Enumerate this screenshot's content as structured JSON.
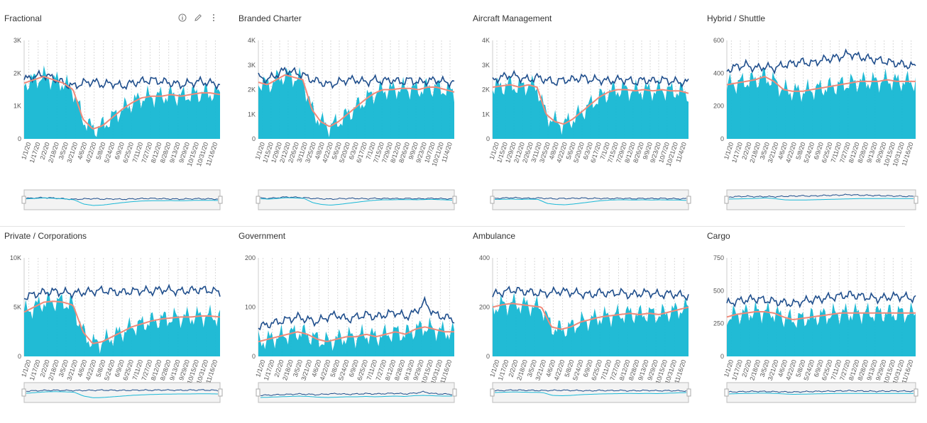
{
  "colors": {
    "dark_series": "#1f4e8c",
    "light_series": "#1ab8d6",
    "fill_area": "#15b7d3",
    "average_line": "#f08a7a",
    "gap_fill": "#5a78a8",
    "grid": "#d9d9d9"
  },
  "icons": [
    "info-icon",
    "pencil-icon",
    "more-vertical-icon"
  ],
  "chart_data": [
    {
      "type": "area",
      "title": "Fractional",
      "ylabels": [
        "0",
        "1K",
        "2K",
        "3K"
      ],
      "ylim": [
        0,
        3000
      ],
      "xlabels": [
        "1/1/20",
        "1/17/20",
        "2/2/20",
        "2/18/20",
        "3/5/20",
        "3/21/20",
        "4/6/20",
        "4/22/20",
        "5/8/20",
        "5/24/20",
        "6/9/20",
        "6/25/20",
        "7/11/20",
        "7/27/20",
        "8/12/20",
        "8/28/20",
        "9/13/20",
        "9/29/20",
        "10/15/20",
        "10/31/20",
        "11/16/20"
      ],
      "series": [
        {
          "name": "",
          "values": [
            1800,
            1900,
            1950,
            1850,
            1700,
            1600,
            1700,
            1750,
            1650,
            1700,
            1600,
            1700,
            1750,
            1800,
            1750,
            1700,
            1650,
            1700,
            1750,
            1700,
            1650
          ]
        },
        {
          "name": "",
          "values": [
            1700,
            1800,
            1900,
            1800,
            1700,
            1500,
            600,
            300,
            400,
            650,
            900,
            1100,
            1250,
            1300,
            1300,
            1350,
            1300,
            1350,
            1400,
            1400,
            1350
          ]
        }
      ]
    },
    {
      "type": "area",
      "title": "Branded Charter",
      "ylabels": [
        "0",
        "1K",
        "2K",
        "3K",
        "4K"
      ],
      "ylim": [
        0,
        4000
      ],
      "xlabels": [
        "1/1/20",
        "1/15/20",
        "1/29/20",
        "2/12/20",
        "2/26/20",
        "3/11/20",
        "3/25/20",
        "4/8/20",
        "4/22/20",
        "5/6/20",
        "5/20/20",
        "6/3/20",
        "6/17/20",
        "7/1/20",
        "7/15/20",
        "7/29/20",
        "8/12/20",
        "8/26/20",
        "9/9/20",
        "9/23/20",
        "10/7/20",
        "10/21/20",
        "11/4/20"
      ],
      "series": [
        {
          "name": "",
          "values": [
            2500,
            2400,
            2600,
            2800,
            2700,
            2600,
            2400,
            2300,
            2200,
            2300,
            2400,
            2400,
            2300,
            2400,
            2350,
            2400,
            2300,
            2400,
            2300,
            2350,
            2400,
            2300,
            2300
          ]
        },
        {
          "name": "",
          "values": [
            2300,
            2200,
            2400,
            2600,
            2500,
            2400,
            1200,
            700,
            500,
            700,
            1000,
            1300,
            1600,
            1850,
            2000,
            2000,
            2050,
            2050,
            2000,
            2100,
            2100,
            2000,
            1900
          ]
        }
      ]
    },
    {
      "type": "area",
      "title": "Aircraft Management",
      "ylabels": [
        "0",
        "1K",
        "2K",
        "3K",
        "4K"
      ],
      "ylim": [
        0,
        4000
      ],
      "xlabels": [
        "1/1/20",
        "1/15/20",
        "1/29/20",
        "2/12/20",
        "2/26/20",
        "3/11/20",
        "3/25/20",
        "4/8/20",
        "4/22/20",
        "5/6/20",
        "5/20/20",
        "6/3/20",
        "6/17/20",
        "7/1/20",
        "7/15/20",
        "7/29/20",
        "8/12/20",
        "8/26/20",
        "9/9/20",
        "9/23/20",
        "10/7/20",
        "10/21/20",
        "11/4/20"
      ],
      "series": [
        {
          "name": "",
          "values": [
            2400,
            2500,
            2600,
            2500,
            2400,
            2500,
            2400,
            2300,
            2400,
            2400,
            2500,
            2400,
            2400,
            2350,
            2400,
            2400,
            2300,
            2400,
            2350,
            2400,
            2350,
            2300,
            2300
          ]
        },
        {
          "name": "",
          "values": [
            2100,
            2150,
            2200,
            2100,
            2200,
            2100,
            1000,
            700,
            600,
            800,
            1100,
            1400,
            1700,
            1900,
            2000,
            2000,
            1950,
            2000,
            1950,
            2000,
            1950,
            1950,
            1850
          ]
        }
      ]
    },
    {
      "type": "area",
      "title": "Hybrid / Shuttle",
      "ylabels": [
        "0",
        "200",
        "400",
        "600"
      ],
      "ylim": [
        0,
        600
      ],
      "xlabels": [
        "1/1/20",
        "1/17/20",
        "2/2/20",
        "2/18/20",
        "3/5/20",
        "3/21/20",
        "4/6/20",
        "4/22/20",
        "5/8/20",
        "5/24/20",
        "6/9/20",
        "6/25/20",
        "7/11/20",
        "7/27/20",
        "8/12/20",
        "8/28/20",
        "9/13/20",
        "9/29/20",
        "10/15/20",
        "10/31/20",
        "11/16/20"
      ],
      "series": [
        {
          "name": "",
          "values": [
            420,
            440,
            450,
            430,
            440,
            430,
            450,
            460,
            470,
            460,
            480,
            490,
            500,
            520,
            500,
            490,
            480,
            470,
            460,
            450,
            440
          ]
        },
        {
          "name": "",
          "values": [
            330,
            340,
            350,
            360,
            380,
            350,
            300,
            290,
            290,
            300,
            310,
            320,
            330,
            340,
            350,
            350,
            350,
            360,
            350,
            350,
            350
          ]
        }
      ]
    },
    {
      "type": "area",
      "title": "Private / Corporations",
      "ylabels": [
        "0",
        "5K",
        "10K"
      ],
      "ylim": [
        0,
        10000
      ],
      "xlabels": [
        "1/1/20",
        "1/17/20",
        "2/2/20",
        "2/18/20",
        "3/5/20",
        "3/21/20",
        "4/6/20",
        "4/22/20",
        "5/8/20",
        "5/24/20",
        "6/9/20",
        "6/25/20",
        "7/11/20",
        "7/27/20",
        "8/12/20",
        "8/28/20",
        "9/13/20",
        "9/29/20",
        "10/15/20",
        "10/31/20",
        "11/16/20"
      ],
      "series": [
        {
          "name": "",
          "values": [
            6000,
            6300,
            6500,
            6600,
            6500,
            6400,
            6500,
            6600,
            6700,
            6600,
            6500,
            6600,
            6700,
            6600,
            6800,
            6700,
            6600,
            6700,
            6800,
            6700,
            6500
          ]
        },
        {
          "name": "",
          "values": [
            4500,
            5000,
            5500,
            5600,
            5500,
            5200,
            2500,
            1300,
            1500,
            2000,
            2500,
            3000,
            3300,
            3600,
            3800,
            3900,
            4000,
            4000,
            4100,
            4100,
            4000
          ]
        }
      ]
    },
    {
      "type": "area",
      "title": "Government",
      "ylabels": [
        "0",
        "100",
        "200"
      ],
      "ylim": [
        0,
        200
      ],
      "xlabels": [
        "1/1/20",
        "1/17/20",
        "2/2/20",
        "2/18/20",
        "3/5/20",
        "3/21/20",
        "4/6/20",
        "4/22/20",
        "5/8/20",
        "5/24/20",
        "6/9/20",
        "6/25/20",
        "7/11/20",
        "7/27/20",
        "8/12/20",
        "8/28/20",
        "9/13/20",
        "9/29/20",
        "10/15/20",
        "10/31/20",
        "11/16/20"
      ],
      "series": [
        {
          "name": "",
          "values": [
            60,
            65,
            70,
            75,
            80,
            75,
            70,
            80,
            85,
            75,
            80,
            85,
            80,
            85,
            90,
            80,
            90,
            110,
            85,
            80,
            75
          ]
        },
        {
          "name": "",
          "values": [
            30,
            35,
            40,
            45,
            50,
            45,
            35,
            30,
            35,
            40,
            40,
            45,
            40,
            45,
            50,
            45,
            55,
            60,
            55,
            50,
            50
          ]
        }
      ]
    },
    {
      "type": "area",
      "title": "Ambulance",
      "ylabels": [
        "0",
        "200",
        "400"
      ],
      "ylim": [
        0,
        400
      ],
      "xlabels": [
        "1/1/20",
        "1/17/20",
        "2/2/20",
        "2/18/20",
        "3/5/20",
        "3/21/20",
        "4/6/20",
        "4/22/20",
        "5/8/20",
        "5/24/20",
        "6/9/20",
        "6/25/20",
        "7/11/20",
        "7/27/20",
        "8/12/20",
        "8/28/20",
        "9/13/20",
        "9/29/20",
        "10/15/20",
        "10/31/20",
        "11/16/20"
      ],
      "series": [
        {
          "name": "",
          "values": [
            250,
            260,
            270,
            265,
            260,
            255,
            260,
            265,
            260,
            255,
            250,
            260,
            255,
            260,
            250,
            255,
            260,
            250,
            255,
            250,
            245
          ]
        },
        {
          "name": "",
          "values": [
            200,
            210,
            215,
            210,
            205,
            200,
            120,
            110,
            120,
            140,
            150,
            160,
            165,
            170,
            175,
            170,
            175,
            170,
            180,
            190,
            200
          ]
        }
      ]
    },
    {
      "type": "area",
      "title": "Cargo",
      "ylabels": [
        "0",
        "250",
        "500",
        "750"
      ],
      "ylim": [
        0,
        750
      ],
      "xlabels": [
        "1/1/20",
        "1/17/20",
        "2/2/20",
        "2/18/20",
        "3/5/20",
        "3/21/20",
        "4/6/20",
        "4/22/20",
        "5/8/20",
        "5/24/20",
        "6/9/20",
        "6/25/20",
        "7/11/20",
        "7/27/20",
        "8/12/20",
        "8/28/20",
        "9/13/20",
        "9/29/20",
        "10/15/20",
        "10/31/20",
        "11/16/20"
      ],
      "series": [
        {
          "name": "",
          "values": [
            400,
            420,
            430,
            440,
            430,
            420,
            410,
            400,
            420,
            430,
            440,
            450,
            460,
            470,
            460,
            450,
            440,
            450,
            460,
            450,
            440
          ]
        },
        {
          "name": "",
          "values": [
            300,
            320,
            330,
            340,
            340,
            330,
            300,
            280,
            290,
            300,
            310,
            320,
            330,
            330,
            330,
            330,
            330,
            330,
            330,
            330,
            330
          ]
        }
      ]
    }
  ]
}
